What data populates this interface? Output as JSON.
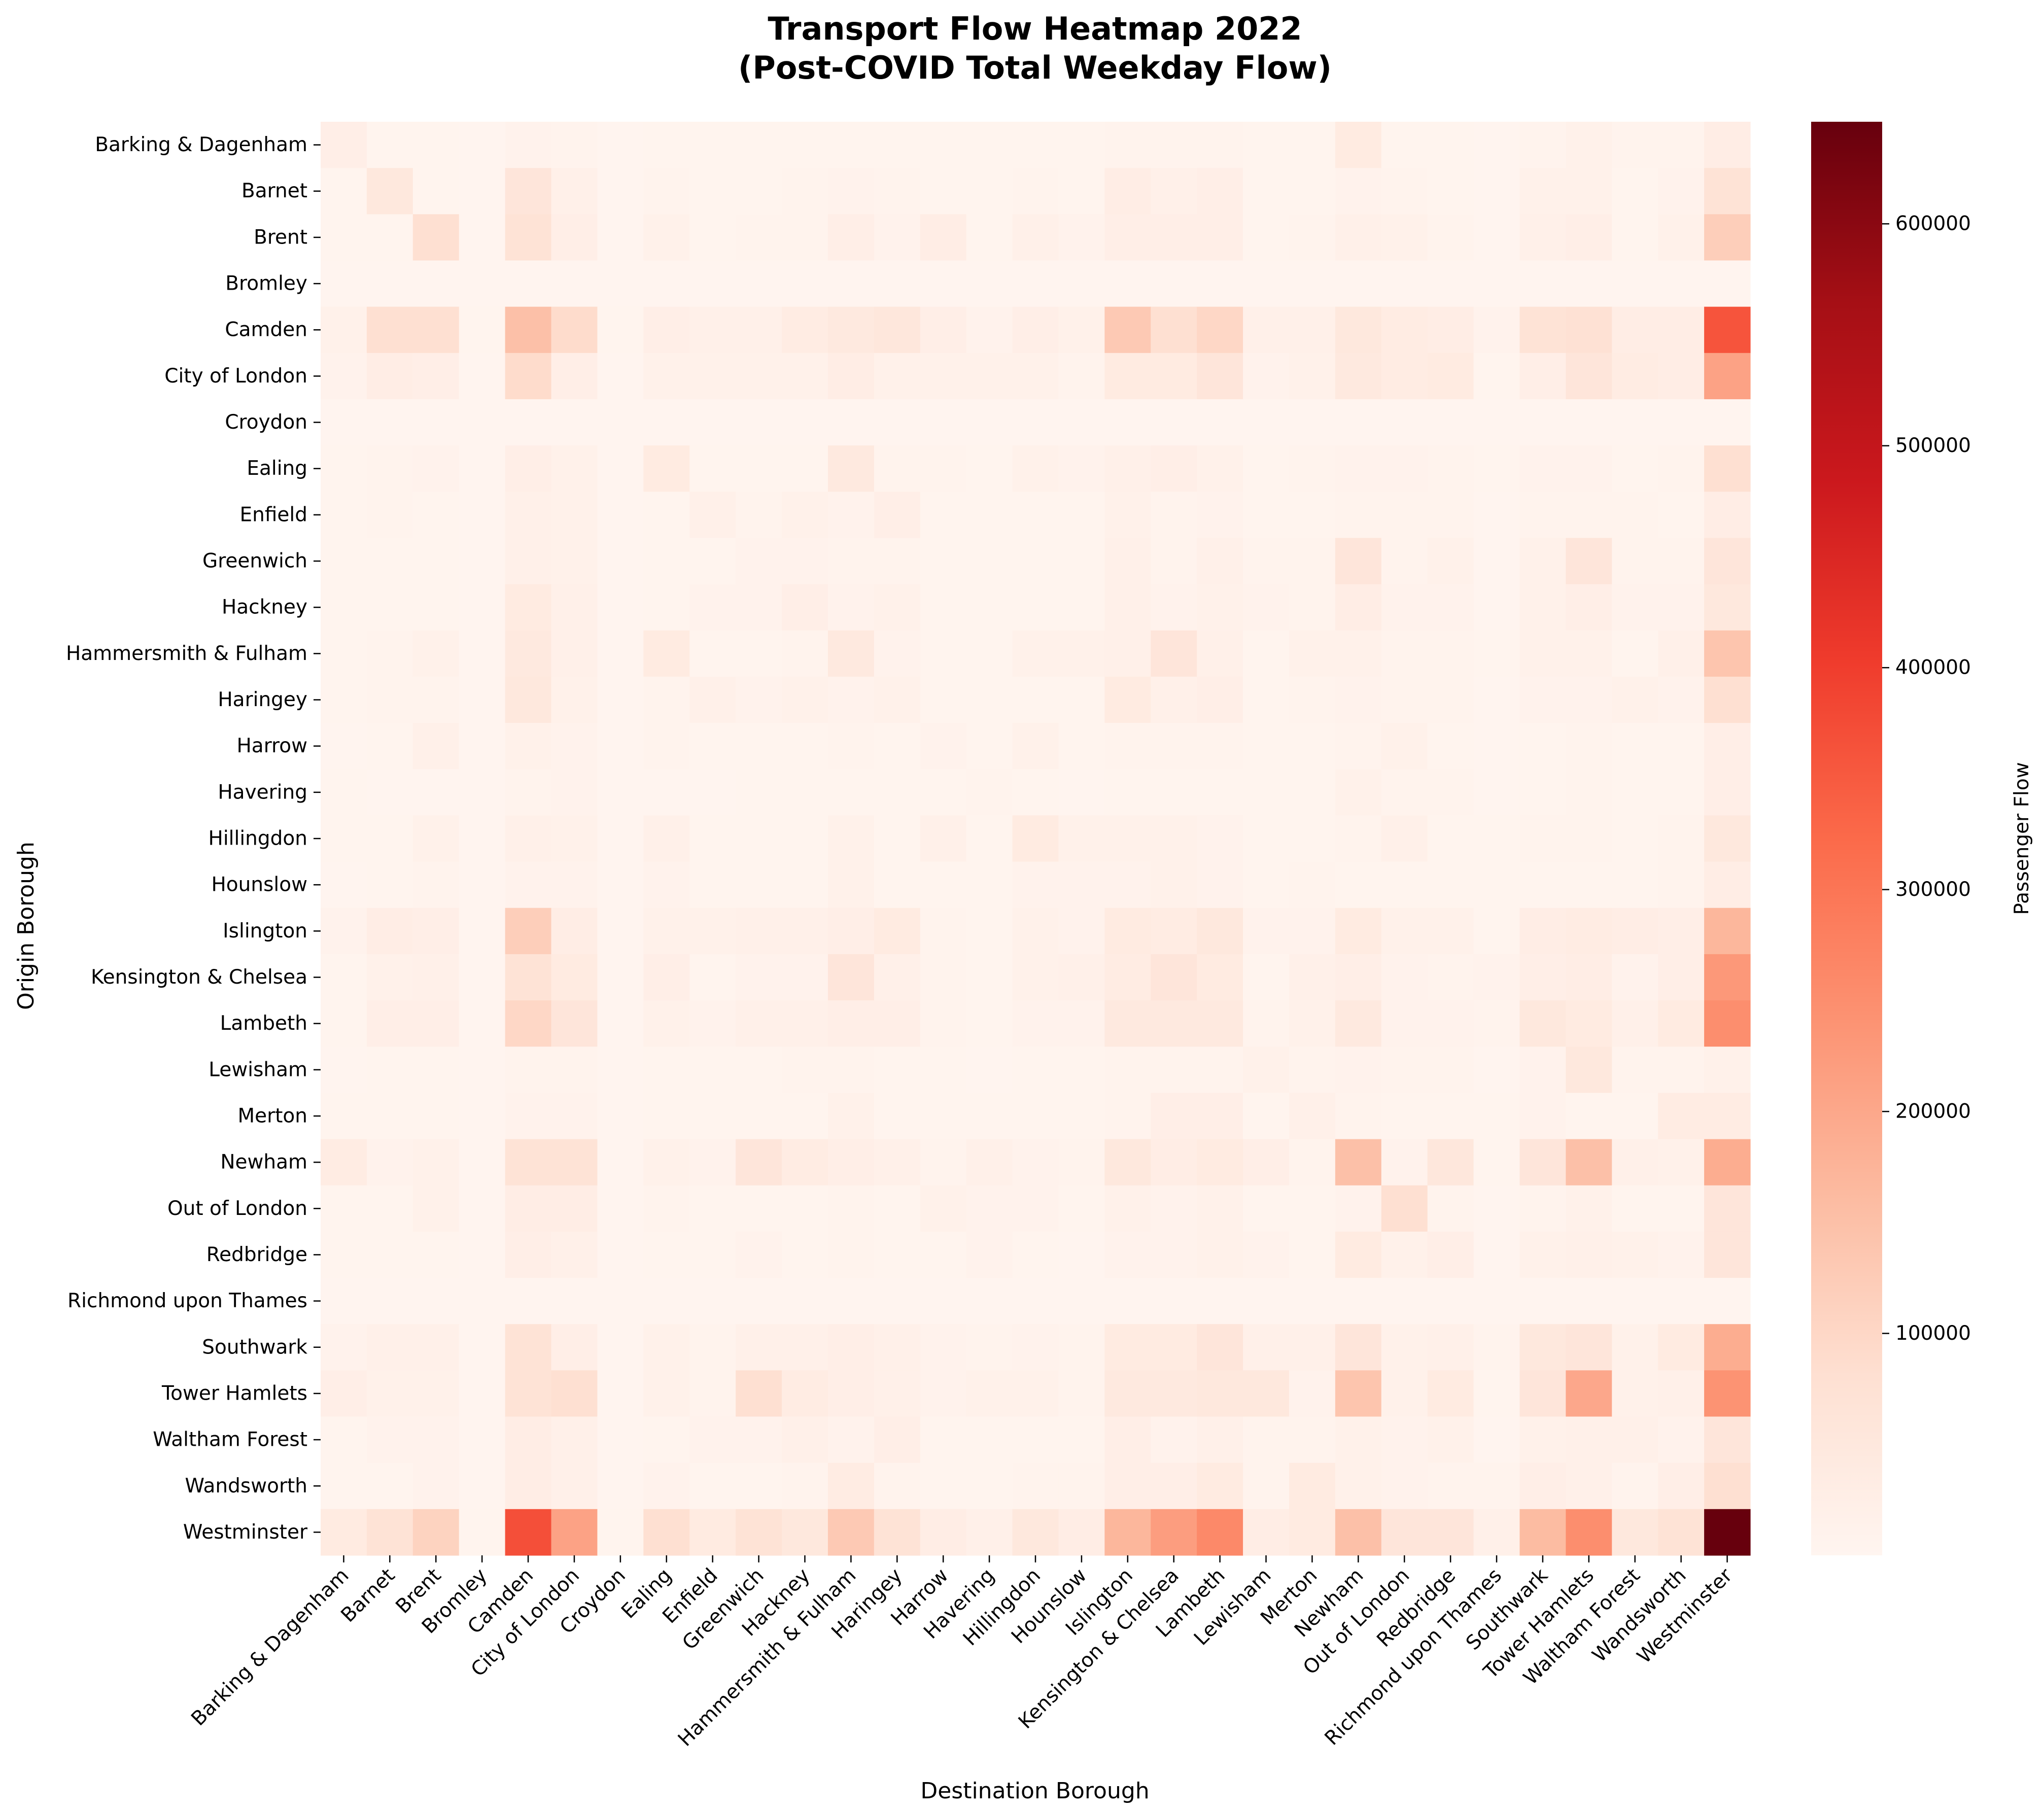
{
  "chart_data": {
    "type": "heatmap",
    "title": "Transport Flow Heatmap 2022\n(Post-COVID Total Weekday Flow)",
    "xlabel": "Destination Borough",
    "ylabel": "Origin Borough",
    "colorbar_label": "Passenger Flow",
    "colormap": "Reds",
    "colorbar_range": [
      0,
      646000
    ],
    "colorbar_ticks": [
      {
        "value": 100000,
        "label": "100000"
      },
      {
        "value": 200000,
        "label": "200000"
      },
      {
        "value": 300000,
        "label": "300000"
      },
      {
        "value": 400000,
        "label": "400000"
      },
      {
        "value": 500000,
        "label": "500000"
      },
      {
        "value": 600000,
        "label": "600000"
      }
    ],
    "categories": [
      "Barking & Dagenham",
      "Barnet",
      "Brent",
      "Bromley",
      "Camden",
      "City of London",
      "Croydon",
      "Ealing",
      "Enfield",
      "Greenwich",
      "Hackney",
      "Hammersmith & Fulham",
      "Haringey",
      "Harrow",
      "Havering",
      "Hillingdon",
      "Hounslow",
      "Islington",
      "Kensington & Chelsea",
      "Lambeth",
      "Lewisham",
      "Merton",
      "Newham",
      "Out of London",
      "Redbridge",
      "Richmond upon Thames",
      "Southwark",
      "Tower Hamlets",
      "Waltham Forest",
      "Wandsworth",
      "Westminster"
    ],
    "rows": [
      "Barking & Dagenham",
      "Barnet",
      "Brent",
      "Bromley",
      "Camden",
      "City of London",
      "Croydon",
      "Ealing",
      "Enfield",
      "Greenwich",
      "Hackney",
      "Hammersmith & Fulham",
      "Haringey",
      "Harrow",
      "Havering",
      "Hillingdon",
      "Hounslow",
      "Islington",
      "Kensington & Chelsea",
      "Lambeth",
      "Lewisham",
      "Merton",
      "Newham",
      "Out of London",
      "Redbridge",
      "Richmond upon Thames",
      "Southwark",
      "Tower Hamlets",
      "Waltham Forest",
      "Wandsworth",
      "Westminster"
    ],
    "values": [
      [
        25000,
        5000,
        5000,
        3000,
        12000,
        8000,
        3000,
        5000,
        5000,
        5000,
        5000,
        5000,
        5000,
        5000,
        5000,
        5000,
        5000,
        8000,
        8000,
        8000,
        5000,
        5000,
        40000,
        5000,
        5000,
        3000,
        8000,
        15000,
        8000,
        8000,
        30000
      ],
      [
        5000,
        50000,
        5000,
        3000,
        60000,
        20000,
        3000,
        8000,
        5000,
        5000,
        8000,
        10000,
        8000,
        5000,
        5000,
        8000,
        5000,
        30000,
        20000,
        25000,
        5000,
        5000,
        10000,
        8000,
        5000,
        3000,
        15000,
        15000,
        5000,
        10000,
        70000
      ],
      [
        5000,
        5000,
        80000,
        3000,
        70000,
        25000,
        3000,
        15000,
        5000,
        8000,
        8000,
        25000,
        10000,
        30000,
        5000,
        20000,
        10000,
        25000,
        25000,
        25000,
        5000,
        8000,
        20000,
        15000,
        8000,
        3000,
        20000,
        25000,
        5000,
        15000,
        120000
      ],
      [
        3000,
        3000,
        3000,
        3000,
        3000,
        3000,
        3000,
        3000,
        3000,
        3000,
        3000,
        3000,
        3000,
        3000,
        3000,
        3000,
        3000,
        3000,
        3000,
        3000,
        3000,
        3000,
        3000,
        3000,
        3000,
        3000,
        3000,
        3000,
        3000,
        3000,
        3000
      ],
      [
        15000,
        80000,
        80000,
        5000,
        150000,
        90000,
        5000,
        25000,
        20000,
        20000,
        35000,
        45000,
        55000,
        25000,
        10000,
        25000,
        15000,
        130000,
        80000,
        100000,
        20000,
        20000,
        50000,
        35000,
        30000,
        10000,
        70000,
        75000,
        30000,
        30000,
        360000
      ],
      [
        10000,
        30000,
        25000,
        3000,
        90000,
        25000,
        3000,
        15000,
        15000,
        15000,
        15000,
        30000,
        15000,
        15000,
        15000,
        15000,
        8000,
        40000,
        40000,
        60000,
        10000,
        15000,
        45000,
        35000,
        40000,
        5000,
        25000,
        60000,
        35000,
        30000,
        210000
      ],
      [
        3000,
        3000,
        3000,
        3000,
        3000,
        3000,
        3000,
        3000,
        3000,
        3000,
        3000,
        3000,
        3000,
        3000,
        3000,
        3000,
        3000,
        3000,
        3000,
        3000,
        3000,
        3000,
        3000,
        3000,
        3000,
        3000,
        3000,
        3000,
        3000,
        3000,
        3000
      ],
      [
        5000,
        8000,
        10000,
        3000,
        25000,
        15000,
        3000,
        40000,
        5000,
        5000,
        5000,
        45000,
        8000,
        8000,
        5000,
        15000,
        10000,
        20000,
        25000,
        15000,
        5000,
        8000,
        10000,
        10000,
        8000,
        5000,
        10000,
        10000,
        5000,
        8000,
        80000
      ],
      [
        5000,
        8000,
        5000,
        3000,
        20000,
        15000,
        3000,
        5000,
        20000,
        8000,
        15000,
        10000,
        25000,
        5000,
        5000,
        5000,
        5000,
        15000,
        8000,
        10000,
        5000,
        5000,
        8000,
        8000,
        8000,
        3000,
        8000,
        8000,
        8000,
        5000,
        30000
      ],
      [
        5000,
        5000,
        5000,
        3000,
        20000,
        15000,
        3000,
        5000,
        5000,
        10000,
        10000,
        8000,
        8000,
        5000,
        5000,
        5000,
        5000,
        20000,
        8000,
        20000,
        8000,
        8000,
        60000,
        8000,
        15000,
        3000,
        15000,
        60000,
        8000,
        8000,
        60000
      ],
      [
        5000,
        5000,
        5000,
        3000,
        40000,
        20000,
        3000,
        5000,
        10000,
        10000,
        25000,
        10000,
        15000,
        5000,
        5000,
        5000,
        5000,
        20000,
        10000,
        15000,
        10000,
        8000,
        30000,
        10000,
        10000,
        3000,
        15000,
        25000,
        10000,
        10000,
        50000
      ],
      [
        5000,
        8000,
        15000,
        3000,
        45000,
        20000,
        3000,
        40000,
        5000,
        5000,
        8000,
        45000,
        10000,
        5000,
        5000,
        15000,
        15000,
        20000,
        60000,
        20000,
        5000,
        15000,
        15000,
        8000,
        8000,
        5000,
        15000,
        15000,
        5000,
        20000,
        140000
      ],
      [
        5000,
        8000,
        8000,
        3000,
        50000,
        15000,
        3000,
        8000,
        20000,
        10000,
        15000,
        10000,
        15000,
        5000,
        5000,
        5000,
        5000,
        40000,
        20000,
        25000,
        5000,
        8000,
        10000,
        8000,
        8000,
        3000,
        10000,
        10000,
        15000,
        10000,
        80000
      ],
      [
        3000,
        5000,
        20000,
        3000,
        15000,
        10000,
        3000,
        8000,
        5000,
        5000,
        5000,
        8000,
        5000,
        10000,
        5000,
        15000,
        5000,
        8000,
        8000,
        8000,
        5000,
        5000,
        8000,
        15000,
        5000,
        3000,
        5000,
        8000,
        5000,
        5000,
        25000
      ],
      [
        5000,
        3000,
        3000,
        3000,
        8000,
        10000,
        3000,
        3000,
        3000,
        5000,
        5000,
        5000,
        5000,
        5000,
        8000,
        5000,
        3000,
        5000,
        5000,
        5000,
        5000,
        5000,
        15000,
        8000,
        8000,
        3000,
        5000,
        8000,
        5000,
        5000,
        25000
      ],
      [
        5000,
        5000,
        15000,
        3000,
        20000,
        15000,
        3000,
        20000,
        5000,
        5000,
        5000,
        15000,
        5000,
        20000,
        5000,
        40000,
        15000,
        15000,
        15000,
        10000,
        5000,
        5000,
        8000,
        20000,
        5000,
        5000,
        8000,
        8000,
        5000,
        8000,
        50000
      ],
      [
        3000,
        5000,
        8000,
        3000,
        10000,
        10000,
        3000,
        10000,
        5000,
        5000,
        5000,
        15000,
        5000,
        5000,
        5000,
        10000,
        10000,
        10000,
        15000,
        10000,
        5000,
        8000,
        5000,
        5000,
        5000,
        5000,
        5000,
        5000,
        5000,
        8000,
        30000
      ],
      [
        10000,
        30000,
        25000,
        3000,
        120000,
        30000,
        3000,
        15000,
        15000,
        20000,
        20000,
        25000,
        40000,
        8000,
        5000,
        15000,
        10000,
        40000,
        35000,
        50000,
        10000,
        10000,
        40000,
        15000,
        15000,
        5000,
        30000,
        35000,
        30000,
        25000,
        170000
      ],
      [
        5000,
        15000,
        20000,
        3000,
        70000,
        40000,
        3000,
        25000,
        5000,
        10000,
        10000,
        60000,
        20000,
        8000,
        5000,
        15000,
        20000,
        35000,
        60000,
        40000,
        5000,
        20000,
        25000,
        10000,
        8000,
        10000,
        25000,
        30000,
        10000,
        25000,
        230000
      ],
      [
        5000,
        25000,
        25000,
        3000,
        100000,
        60000,
        3000,
        15000,
        10000,
        20000,
        20000,
        25000,
        25000,
        8000,
        5000,
        10000,
        10000,
        45000,
        45000,
        45000,
        8000,
        15000,
        45000,
        10000,
        10000,
        8000,
        50000,
        40000,
        20000,
        40000,
        250000
      ],
      [
        3000,
        5000,
        5000,
        3000,
        8000,
        8000,
        3000,
        5000,
        5000,
        5000,
        8000,
        8000,
        5000,
        5000,
        3000,
        5000,
        5000,
        8000,
        8000,
        8000,
        15000,
        8000,
        10000,
        8000,
        8000,
        3000,
        10000,
        50000,
        8000,
        8000,
        15000
      ],
      [
        5000,
        5000,
        5000,
        3000,
        10000,
        10000,
        3000,
        5000,
        5000,
        5000,
        5000,
        15000,
        5000,
        5000,
        5000,
        5000,
        5000,
        8000,
        25000,
        25000,
        5000,
        20000,
        8000,
        5000,
        5000,
        5000,
        10000,
        5000,
        5000,
        35000,
        35000
      ],
      [
        35000,
        10000,
        15000,
        3000,
        70000,
        70000,
        3000,
        15000,
        10000,
        60000,
        35000,
        25000,
        20000,
        8000,
        20000,
        10000,
        8000,
        50000,
        30000,
        40000,
        25000,
        8000,
        150000,
        10000,
        55000,
        5000,
        60000,
        150000,
        20000,
        15000,
        190000
      ],
      [
        5000,
        5000,
        15000,
        3000,
        30000,
        30000,
        3000,
        8000,
        5000,
        5000,
        5000,
        8000,
        5000,
        15000,
        10000,
        10000,
        5000,
        15000,
        10000,
        15000,
        5000,
        5000,
        10000,
        80000,
        8000,
        3000,
        8000,
        15000,
        5000,
        5000,
        60000
      ],
      [
        5000,
        5000,
        5000,
        3000,
        25000,
        20000,
        3000,
        5000,
        5000,
        10000,
        5000,
        8000,
        5000,
        5000,
        10000,
        5000,
        3000,
        10000,
        10000,
        15000,
        10000,
        5000,
        40000,
        15000,
        25000,
        3000,
        15000,
        20000,
        15000,
        10000,
        60000
      ],
      [
        3000,
        3000,
        3000,
        3000,
        3000,
        3000,
        3000,
        3000,
        3000,
        3000,
        3000,
        3000,
        3000,
        3000,
        3000,
        3000,
        3000,
        3000,
        3000,
        3000,
        3000,
        3000,
        3000,
        3000,
        3000,
        3000,
        3000,
        3000,
        3000,
        3000,
        3000
      ],
      [
        10000,
        20000,
        20000,
        3000,
        70000,
        25000,
        3000,
        15000,
        8000,
        20000,
        20000,
        25000,
        20000,
        10000,
        8000,
        10000,
        8000,
        40000,
        40000,
        60000,
        20000,
        20000,
        60000,
        15000,
        20000,
        8000,
        50000,
        60000,
        15000,
        40000,
        190000
      ],
      [
        25000,
        15000,
        15000,
        3000,
        70000,
        80000,
        3000,
        15000,
        8000,
        80000,
        35000,
        25000,
        20000,
        10000,
        15000,
        15000,
        8000,
        45000,
        45000,
        50000,
        50000,
        10000,
        140000,
        15000,
        40000,
        5000,
        60000,
        200000,
        15000,
        20000,
        240000
      ],
      [
        5000,
        10000,
        10000,
        3000,
        30000,
        20000,
        3000,
        5000,
        10000,
        10000,
        20000,
        10000,
        25000,
        5000,
        5000,
        5000,
        5000,
        25000,
        10000,
        20000,
        8000,
        8000,
        15000,
        10000,
        15000,
        3000,
        15000,
        20000,
        20000,
        10000,
        60000
      ],
      [
        5000,
        5000,
        10000,
        3000,
        30000,
        20000,
        3000,
        10000,
        5000,
        5000,
        8000,
        35000,
        8000,
        5000,
        5000,
        8000,
        8000,
        25000,
        25000,
        40000,
        8000,
        40000,
        15000,
        10000,
        8000,
        8000,
        25000,
        20000,
        8000,
        25000,
        80000
      ],
      [
        40000,
        70000,
        110000,
        5000,
        370000,
        210000,
        5000,
        80000,
        40000,
        70000,
        50000,
        130000,
        70000,
        30000,
        20000,
        50000,
        30000,
        170000,
        220000,
        260000,
        30000,
        40000,
        150000,
        60000,
        60000,
        20000,
        160000,
        250000,
        50000,
        70000,
        646000
      ]
    ]
  }
}
